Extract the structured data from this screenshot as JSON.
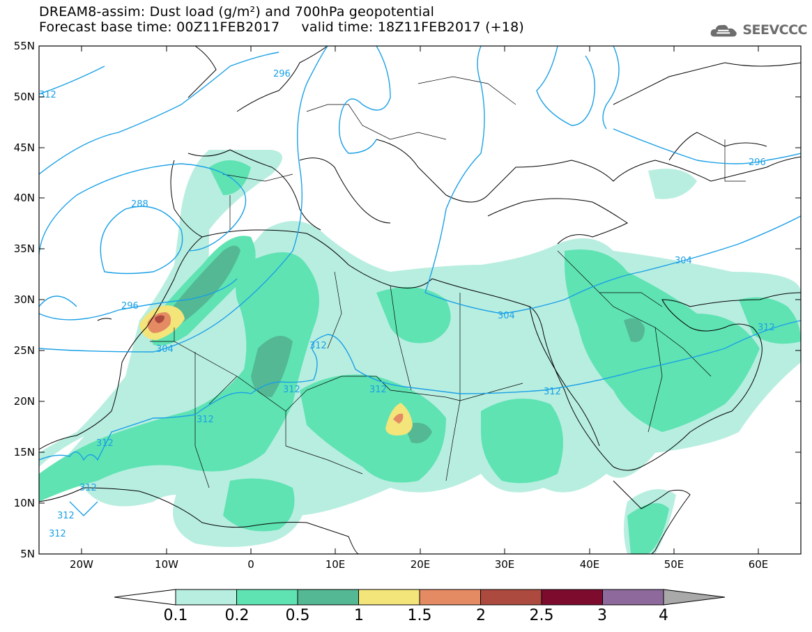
{
  "header": {
    "title_line1": "DREAM8-assim: Dust load (g/m²) and 700hPa geopotential",
    "title_line2": "Forecast base time: 00Z11FEB2017     valid time: 18Z11FEB2017 (+18)",
    "logo_text": "SEEVCCC"
  },
  "axes": {
    "lat_labels": [
      "55N",
      "50N",
      "45N",
      "40N",
      "35N",
      "30N",
      "25N",
      "20N",
      "15N",
      "10N",
      "5N"
    ],
    "lon_labels": [
      "20W",
      "10W",
      "0",
      "10E",
      "20E",
      "30E",
      "40E",
      "50E",
      "60E"
    ]
  },
  "contour_labels": [
    "312",
    "296",
    "288",
    "296",
    "304",
    "312",
    "312",
    "312",
    "312",
    "304",
    "304",
    "312",
    "296",
    "312",
    "312",
    "312",
    "312",
    "312"
  ],
  "colorbar": {
    "labels": [
      "0.1",
      "0.2",
      "0.5",
      "1",
      "1.5",
      "2",
      "2.5",
      "3",
      "4"
    ],
    "colors": [
      "#ffffff",
      "#b8eee0",
      "#5fe3b3",
      "#53b893",
      "#f3e57a",
      "#e58b63",
      "#ad4a3f",
      "#7c0b2e",
      "#8e6a9c",
      "#a9a9a9"
    ]
  }
}
